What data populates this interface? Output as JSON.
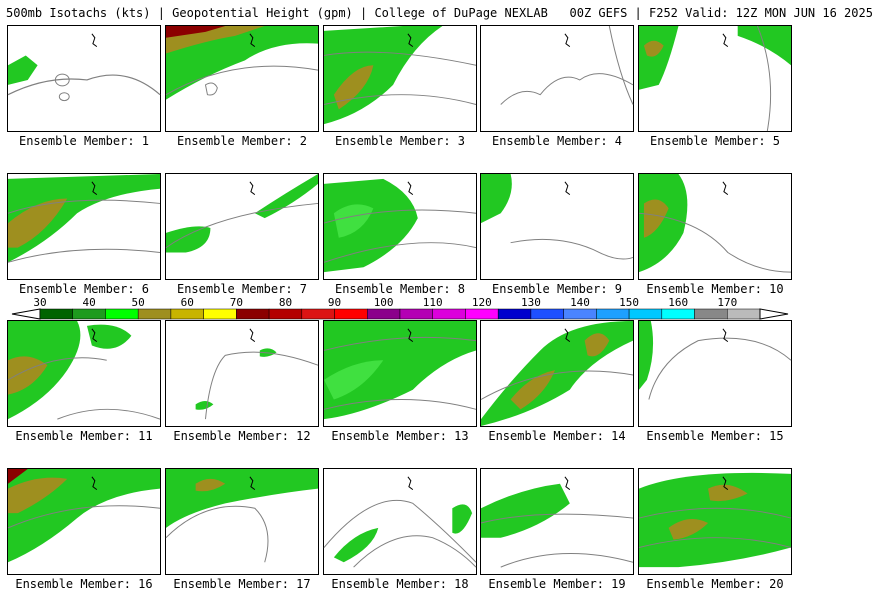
{
  "header": {
    "title": "500mb Isotachs (kts) | Geopotential Height (gpm) | College of DuPage NEXLAB   00Z GEFS | F252 Valid: 12Z MON JUN 16 2025"
  },
  "colorbar": {
    "ticks": [
      "30",
      "40",
      "50",
      "60",
      "70",
      "80",
      "90",
      "100",
      "110",
      "120",
      "130",
      "140",
      "150",
      "160",
      "170"
    ],
    "colors": [
      "#006400",
      "#1e9b1e",
      "#00ff00",
      "#9e8f1f",
      "#c8b400",
      "#ffff00",
      "#8b0000",
      "#b40000",
      "#dc1414",
      "#ff0000",
      "#8b008b",
      "#b400b4",
      "#dc00dc",
      "#ff00ff",
      "#0000cd",
      "#1e50ff",
      "#4a84ff",
      "#1ea0ff",
      "#00c8ff",
      "#00ffff",
      "#888888",
      "#bbbbbb"
    ]
  },
  "palette": {
    "dark_green": "#0b7a0b",
    "green": "#22c822",
    "light_green": "#40e040",
    "olive": "#9e8f1f",
    "dark_red": "#8b0000",
    "contour": "#808080"
  },
  "members": [
    {
      "caption": "Ensemble Member: 1"
    },
    {
      "caption": "Ensemble Member: 2"
    },
    {
      "caption": "Ensemble Member: 3"
    },
    {
      "caption": "Ensemble Member: 4"
    },
    {
      "caption": "Ensemble Member: 5"
    },
    {
      "caption": "Ensemble Member: 6"
    },
    {
      "caption": "Ensemble Member: 7"
    },
    {
      "caption": "Ensemble Member: 8"
    },
    {
      "caption": "Ensemble Member: 9"
    },
    {
      "caption": "Ensemble Member: 10"
    },
    {
      "caption": "Ensemble Member: 11"
    },
    {
      "caption": "Ensemble Member: 12"
    },
    {
      "caption": "Ensemble Member: 13"
    },
    {
      "caption": "Ensemble Member: 14"
    },
    {
      "caption": "Ensemble Member: 15"
    },
    {
      "caption": "Ensemble Member: 16"
    },
    {
      "caption": "Ensemble Member: 17"
    },
    {
      "caption": "Ensemble Member: 18"
    },
    {
      "caption": "Ensemble Member: 19"
    },
    {
      "caption": "Ensemble Member: 20"
    }
  ]
}
